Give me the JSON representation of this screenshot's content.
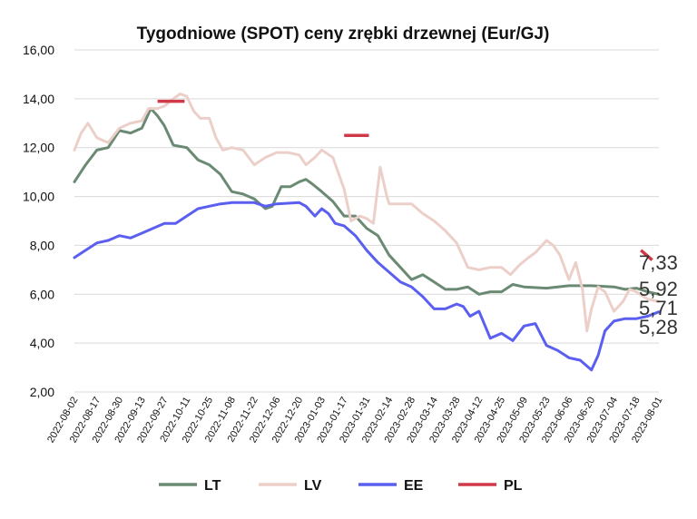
{
  "chart_data": {
    "type": "line",
    "title": "Tygodniowe (SPOT) ceny zrębki drzewnej (Eur/GJ)",
    "xlabel": "",
    "ylabel": "",
    "ylim": [
      2,
      16
    ],
    "yticks": [
      "2,00",
      "4,00",
      "6,00",
      "8,00",
      "10,00",
      "12,00",
      "14,00",
      "16,00"
    ],
    "grid": true,
    "legend": "bottom",
    "categories": [
      "2022-08-02",
      "2022-08-17",
      "2022-08-30",
      "2022-09-13",
      "2022-09-27",
      "2022-10-11",
      "2022-10-25",
      "2022-11-08",
      "2022-11-22",
      "2022-12-06",
      "2022-12-20",
      "2023-01-03",
      "2023-01-17",
      "2023-01-31",
      "2023-02-14",
      "2023-02-28",
      "2023-03-14",
      "2023-03-28",
      "2023-04-12",
      "2023-04-25",
      "2023-05-09",
      "2023-05-23",
      "2023-06-06",
      "2023-06-20",
      "2023-07-04",
      "2023-07-18",
      "2023-08-01"
    ],
    "series": [
      {
        "name": "LT",
        "color": "#6b8a74",
        "values": [
          [
            0,
            10.6
          ],
          [
            0.5,
            11.3
          ],
          [
            1,
            11.9
          ],
          [
            1.5,
            12.0
          ],
          [
            2,
            12.7
          ],
          [
            2.5,
            12.6
          ],
          [
            3,
            12.8
          ],
          [
            3.4,
            13.6
          ],
          [
            3.7,
            13.3
          ],
          [
            4,
            12.9
          ],
          [
            4.4,
            12.1
          ],
          [
            5,
            12.0
          ],
          [
            5.5,
            11.5
          ],
          [
            6,
            11.3
          ],
          [
            6.5,
            10.9
          ],
          [
            7,
            10.2
          ],
          [
            7.5,
            10.1
          ],
          [
            8,
            9.9
          ],
          [
            8.5,
            9.5
          ],
          [
            8.8,
            9.6
          ],
          [
            9.2,
            10.4
          ],
          [
            9.6,
            10.4
          ],
          [
            10,
            10.6
          ],
          [
            10.3,
            10.7
          ],
          [
            10.6,
            10.5
          ],
          [
            11,
            10.2
          ],
          [
            11.5,
            9.8
          ],
          [
            12,
            9.2
          ],
          [
            12.5,
            9.2
          ],
          [
            13,
            8.7
          ],
          [
            13.5,
            8.4
          ],
          [
            14,
            7.6
          ],
          [
            14.5,
            7.1
          ],
          [
            15,
            6.6
          ],
          [
            15.5,
            6.8
          ],
          [
            16,
            6.5
          ],
          [
            16.5,
            6.2
          ],
          [
            17,
            6.2
          ],
          [
            17.5,
            6.3
          ],
          [
            18,
            6.0
          ],
          [
            18.5,
            6.1
          ],
          [
            19,
            6.1
          ],
          [
            19.5,
            6.4
          ],
          [
            20,
            6.3
          ],
          [
            21,
            6.25
          ],
          [
            22,
            6.35
          ],
          [
            23,
            6.35
          ],
          [
            24,
            6.3
          ],
          [
            24.5,
            6.2
          ],
          [
            25,
            6.25
          ],
          [
            25.5,
            6.1
          ],
          [
            26,
            6.0
          ]
        ]
      },
      {
        "name": "LV",
        "color": "#eccfc9",
        "values": [
          [
            0,
            11.9
          ],
          [
            0.3,
            12.6
          ],
          [
            0.6,
            13.0
          ],
          [
            1,
            12.4
          ],
          [
            1.5,
            12.2
          ],
          [
            2,
            12.8
          ],
          [
            2.5,
            13.0
          ],
          [
            3,
            13.1
          ],
          [
            3.3,
            13.6
          ],
          [
            3.7,
            13.6
          ],
          [
            4,
            13.7
          ],
          [
            4.4,
            14.0
          ],
          [
            4.7,
            14.2
          ],
          [
            5,
            14.1
          ],
          [
            5.3,
            13.5
          ],
          [
            5.6,
            13.2
          ],
          [
            6,
            13.2
          ],
          [
            6.3,
            12.4
          ],
          [
            6.6,
            11.9
          ],
          [
            7,
            12.0
          ],
          [
            7.5,
            11.9
          ],
          [
            8,
            11.3
          ],
          [
            8.5,
            11.6
          ],
          [
            9,
            11.8
          ],
          [
            9.5,
            11.8
          ],
          [
            10,
            11.7
          ],
          [
            10.3,
            11.3
          ],
          [
            10.7,
            11.6
          ],
          [
            11,
            11.9
          ],
          [
            11.5,
            11.6
          ],
          [
            12,
            10.3
          ],
          [
            12.3,
            9.0
          ],
          [
            12.7,
            9.2
          ],
          [
            13,
            9.1
          ],
          [
            13.3,
            8.9
          ],
          [
            13.6,
            11.2
          ],
          [
            13.9,
            10.0
          ],
          [
            14,
            9.7
          ],
          [
            14.5,
            9.7
          ],
          [
            15,
            9.7
          ],
          [
            15.5,
            9.3
          ],
          [
            16,
            9.0
          ],
          [
            16.5,
            8.6
          ],
          [
            17,
            8.1
          ],
          [
            17.5,
            7.1
          ],
          [
            18,
            7.0
          ],
          [
            18.5,
            7.1
          ],
          [
            19,
            7.1
          ],
          [
            19.4,
            6.8
          ],
          [
            19.8,
            7.2
          ],
          [
            20.2,
            7.5
          ],
          [
            20.5,
            7.7
          ],
          [
            21,
            8.2
          ],
          [
            21.3,
            8.0
          ],
          [
            21.6,
            7.6
          ],
          [
            22,
            6.6
          ],
          [
            22.3,
            7.3
          ],
          [
            22.6,
            6.2
          ],
          [
            22.8,
            4.5
          ],
          [
            23,
            5.4
          ],
          [
            23.3,
            6.3
          ],
          [
            23.6,
            6.1
          ],
          [
            24,
            5.3
          ],
          [
            24.4,
            5.7
          ],
          [
            24.7,
            6.2
          ],
          [
            25,
            6.1
          ],
          [
            25.5,
            5.8
          ],
          [
            26,
            5.7
          ]
        ]
      },
      {
        "name": "EE",
        "color": "#5b5ff0",
        "values": [
          [
            0,
            7.5
          ],
          [
            0.5,
            7.8
          ],
          [
            1,
            8.1
          ],
          [
            1.5,
            8.2
          ],
          [
            2,
            8.4
          ],
          [
            2.5,
            8.3
          ],
          [
            3,
            8.5
          ],
          [
            3.5,
            8.7
          ],
          [
            4,
            8.9
          ],
          [
            4.5,
            8.9
          ],
          [
            5,
            9.2
          ],
          [
            5.5,
            9.5
          ],
          [
            6,
            9.6
          ],
          [
            6.5,
            9.7
          ],
          [
            7,
            9.75
          ],
          [
            8,
            9.75
          ],
          [
            8.5,
            9.6
          ],
          [
            9,
            9.7
          ],
          [
            10,
            9.75
          ],
          [
            10.3,
            9.6
          ],
          [
            10.7,
            9.2
          ],
          [
            11,
            9.5
          ],
          [
            11.3,
            9.3
          ],
          [
            11.6,
            8.9
          ],
          [
            12,
            8.8
          ],
          [
            12.5,
            8.4
          ],
          [
            13,
            7.8
          ],
          [
            13.5,
            7.3
          ],
          [
            14,
            6.9
          ],
          [
            14.5,
            6.5
          ],
          [
            15,
            6.3
          ],
          [
            15.5,
            5.9
          ],
          [
            16,
            5.4
          ],
          [
            16.5,
            5.4
          ],
          [
            17,
            5.6
          ],
          [
            17.3,
            5.5
          ],
          [
            17.6,
            5.1
          ],
          [
            18,
            5.3
          ],
          [
            18.5,
            4.2
          ],
          [
            19,
            4.4
          ],
          [
            19.5,
            4.1
          ],
          [
            20,
            4.7
          ],
          [
            20.5,
            4.8
          ],
          [
            21,
            3.9
          ],
          [
            21.5,
            3.7
          ],
          [
            22,
            3.4
          ],
          [
            22.5,
            3.3
          ],
          [
            23,
            2.9
          ],
          [
            23.3,
            3.5
          ],
          [
            23.6,
            4.5
          ],
          [
            24,
            4.9
          ],
          [
            24.5,
            5.0
          ],
          [
            25,
            5.0
          ],
          [
            25.5,
            5.1
          ],
          [
            26,
            5.28
          ]
        ]
      },
      {
        "name": "PL",
        "color": "#d03a48",
        "segments": [
          [
            [
              3.7,
              13.9
            ],
            [
              4.9,
              13.9
            ]
          ],
          [
            [
              12,
              12.5
            ],
            [
              13.1,
              12.5
            ]
          ],
          [
            [
              25.2,
              7.8
            ],
            [
              25.7,
              7.4
            ]
          ]
        ]
      }
    ],
    "end_labels": [
      {
        "text": "7,33",
        "value": 7.33
      },
      {
        "text": "5,92",
        "value": 5.92
      },
      {
        "text": "5,71",
        "value": 5.71
      },
      {
        "text": "5,28",
        "value": 5.28
      }
    ]
  }
}
